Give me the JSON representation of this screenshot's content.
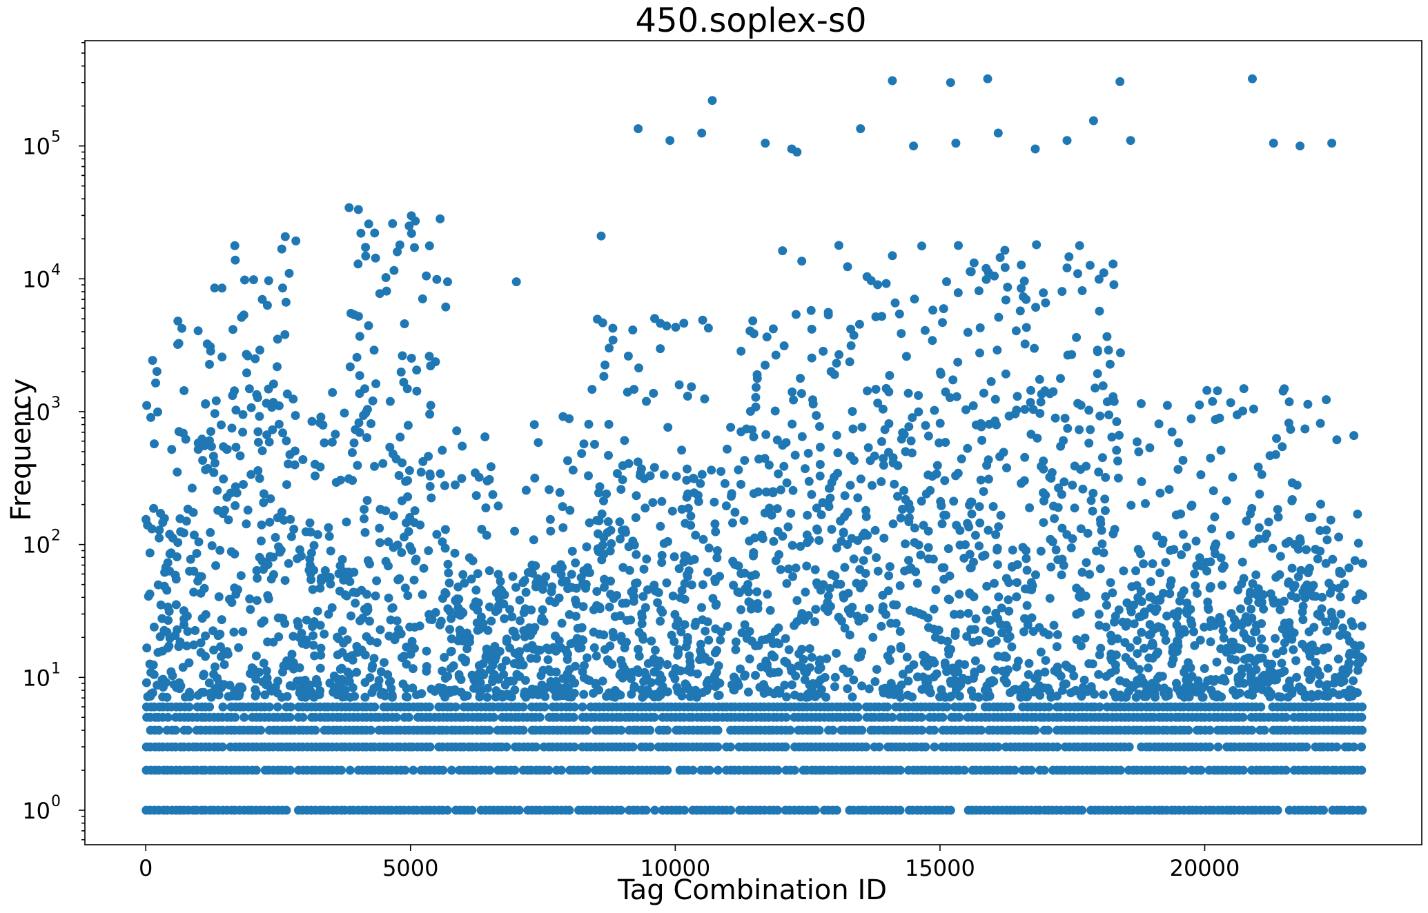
{
  "chart_data": {
    "type": "scatter",
    "title": "450.soplex-s0",
    "xlabel": "Tag Combination ID",
    "ylabel": "Frequency",
    "xlim": [
      -1150,
      24100
    ],
    "ylim": [
      0.55,
      620000
    ],
    "yscale": "log",
    "grid": false,
    "legend": "none",
    "marker_color": "#1f77b4",
    "x_ticks": [
      {
        "value": 0,
        "label": "0"
      },
      {
        "value": 5000,
        "label": "5000"
      },
      {
        "value": 10000,
        "label": "10000"
      },
      {
        "value": 15000,
        "label": "15000"
      },
      {
        "value": 20000,
        "label": "20000"
      }
    ],
    "y_ticks": [
      {
        "value": 1,
        "base": "10",
        "exp": "0"
      },
      {
        "value": 10,
        "base": "10",
        "exp": "1"
      },
      {
        "value": 100,
        "base": "10",
        "exp": "2"
      },
      {
        "value": 1000,
        "base": "10",
        "exp": "3"
      },
      {
        "value": 10000,
        "base": "10",
        "exp": "4"
      },
      {
        "value": 100000,
        "base": "10",
        "exp": "5"
      }
    ],
    "x_range": [
      0,
      23000
    ],
    "level_values": [
      1,
      2,
      3,
      4,
      5,
      6
    ],
    "bands": [
      {
        "x": [
          0,
          500
        ],
        "ymax": 200
      },
      {
        "x": [
          500,
          1500
        ],
        "ymax": 800
      },
      {
        "x": [
          1500,
          2300
        ],
        "ymax": 1500
      },
      {
        "x": [
          2300,
          2900
        ],
        "ymax": 2000
      },
      {
        "x": [
          2900,
          3800
        ],
        "ymax": 150
      },
      {
        "x": [
          3800,
          5700
        ],
        "ymax": 3000
      },
      {
        "x": [
          5700,
          7200
        ],
        "ymax": 60
      },
      {
        "x": [
          7200,
          8300
        ],
        "ymax": 80
      },
      {
        "x": [
          8300,
          9000
        ],
        "ymax": 400
      },
      {
        "x": [
          9000,
          12000
        ],
        "ymax": 400
      },
      {
        "x": [
          12000,
          18500
        ],
        "ymax": 1500
      },
      {
        "x": [
          18500,
          23000
        ],
        "ymax": 120
      }
    ],
    "outliers": [
      {
        "x": 9300,
        "y": 135000
      },
      {
        "x": 9900,
        "y": 110000
      },
      {
        "x": 10500,
        "y": 125000
      },
      {
        "x": 10700,
        "y": 220000
      },
      {
        "x": 11700,
        "y": 105000
      },
      {
        "x": 12200,
        "y": 95000
      },
      {
        "x": 12300,
        "y": 90000
      },
      {
        "x": 13500,
        "y": 135000
      },
      {
        "x": 14100,
        "y": 310000
      },
      {
        "x": 14500,
        "y": 100000
      },
      {
        "x": 15200,
        "y": 300000
      },
      {
        "x": 15300,
        "y": 105000
      },
      {
        "x": 15900,
        "y": 320000
      },
      {
        "x": 16100,
        "y": 125000
      },
      {
        "x": 16800,
        "y": 95000
      },
      {
        "x": 17400,
        "y": 110000
      },
      {
        "x": 17900,
        "y": 155000
      },
      {
        "x": 18400,
        "y": 305000
      },
      {
        "x": 18600,
        "y": 110000
      },
      {
        "x": 20900,
        "y": 320000
      },
      {
        "x": 21300,
        "y": 105000
      },
      {
        "x": 21800,
        "y": 100000
      },
      {
        "x": 22400,
        "y": 105000
      },
      {
        "x": 4800,
        "y": 18000
      },
      {
        "x": 8600,
        "y": 21000
      },
      {
        "x": 2200,
        "y": 7000
      },
      {
        "x": 7000,
        "y": 9500
      },
      {
        "x": 5700,
        "y": 9500
      }
    ]
  }
}
